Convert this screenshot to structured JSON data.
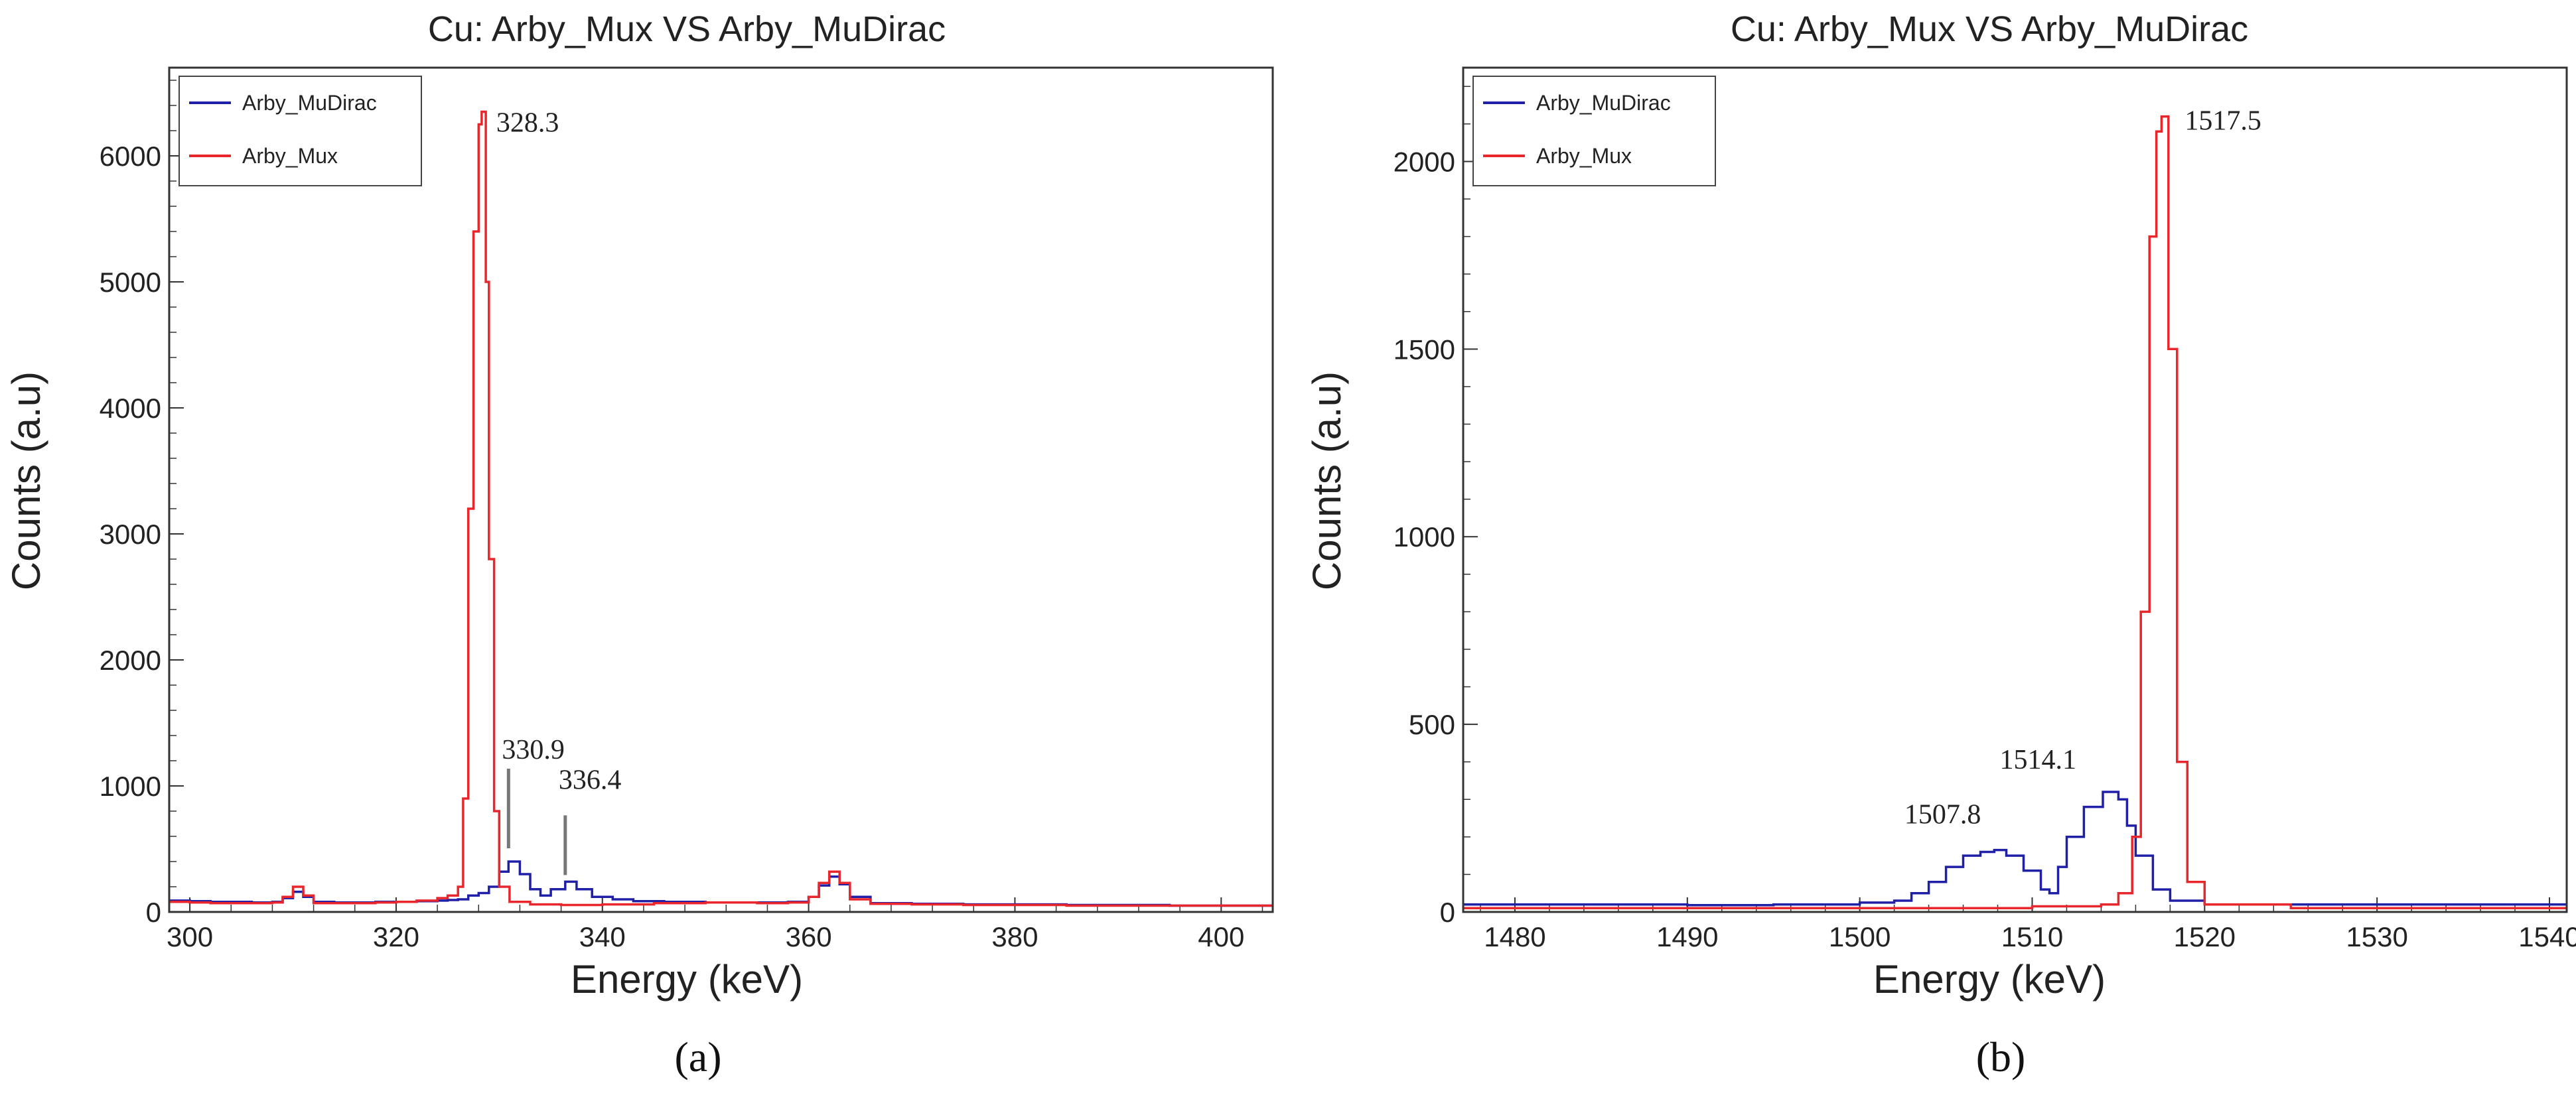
{
  "chart_data": [
    {
      "type": "line",
      "panel": "a",
      "caption": "(a)",
      "title": "Cu: Arby_Mux VS Arby_MuDirac",
      "xlabel": "Energy (keV)",
      "ylabel": "Counts (a.u)",
      "xlim": [
        298,
        405
      ],
      "ylim": [
        0,
        6700
      ],
      "xticks": [
        300,
        320,
        340,
        360,
        380,
        400
      ],
      "yticks": [
        0,
        1000,
        2000,
        3000,
        4000,
        5000,
        6000
      ],
      "legend": {
        "placement": "top-left",
        "entries": [
          "Arby_MuDirac",
          "Arby_Mux"
        ]
      },
      "series": [
        {
          "name": "Arby_MuDirac",
          "color": "#1f1fa8",
          "x": [
            298,
            300,
            302,
            304,
            306,
            308,
            309,
            310,
            311,
            312,
            314,
            316,
            318,
            320,
            322,
            324,
            325,
            326,
            327,
            328,
            329,
            330,
            330.9,
            332,
            333,
            334,
            335,
            336.4,
            337.5,
            339,
            341,
            343,
            346,
            350,
            354,
            358,
            360,
            361,
            362,
            363,
            364,
            366,
            370,
            375,
            380,
            385,
            390,
            395,
            400,
            405
          ],
          "y": [
            90,
            85,
            80,
            80,
            75,
            80,
            110,
            160,
            120,
            80,
            75,
            75,
            80,
            80,
            85,
            90,
            95,
            100,
            130,
            150,
            200,
            320,
            400,
            300,
            180,
            130,
            180,
            240,
            180,
            120,
            100,
            85,
            80,
            75,
            75,
            80,
            120,
            210,
            280,
            220,
            120,
            70,
            65,
            60,
            60,
            55,
            55,
            50,
            50,
            50
          ]
        },
        {
          "name": "Arby_Mux",
          "color": "#e8262b",
          "x": [
            298,
            300,
            302,
            304,
            306,
            308,
            309,
            310,
            311,
            312,
            314,
            316,
            318,
            320,
            322,
            324,
            325,
            326,
            326.5,
            327,
            327.5,
            328,
            328.3,
            328.7,
            329,
            329.5,
            330,
            331,
            333,
            336,
            340,
            345,
            350,
            355,
            358,
            360,
            361,
            362,
            363,
            364,
            366,
            370,
            375,
            380,
            385,
            390,
            395,
            400,
            405
          ],
          "y": [
            80,
            75,
            70,
            70,
            70,
            75,
            120,
            200,
            130,
            70,
            70,
            70,
            75,
            80,
            90,
            110,
            130,
            200,
            900,
            3200,
            5400,
            6250,
            6350,
            5000,
            2800,
            800,
            200,
            80,
            60,
            55,
            60,
            70,
            75,
            70,
            75,
            120,
            230,
            320,
            230,
            100,
            65,
            60,
            55,
            55,
            50,
            50,
            50,
            50,
            50
          ]
        }
      ],
      "annotations": [
        {
          "text": "328.3",
          "x": 328.3,
          "y": 6350
        },
        {
          "text": "330.9",
          "x": 330.9,
          "y": 400
        },
        {
          "text": "336.4",
          "x": 336.4,
          "y": 240
        }
      ]
    },
    {
      "type": "line",
      "panel": "b",
      "caption": "(b)",
      "title": "Cu: Arby_Mux VS Arby_MuDirac",
      "xlabel": "Energy (keV)",
      "ylabel": "Counts (a.u)",
      "xlim": [
        1477,
        1541
      ],
      "ylim": [
        0,
        2250
      ],
      "xticks": [
        1480,
        1490,
        1500,
        1510,
        1520,
        1530,
        1540
      ],
      "yticks": [
        0,
        500,
        1000,
        1500,
        2000
      ],
      "legend": {
        "placement": "top-left",
        "entries": [
          "Arby_MuDirac",
          "Arby_Mux"
        ]
      },
      "series": [
        {
          "name": "Arby_MuDirac",
          "color": "#1f1fa8",
          "x": [
            1477,
            1480,
            1485,
            1490,
            1495,
            1500,
            1502,
            1503,
            1504,
            1505,
            1506,
            1507,
            1507.8,
            1508.5,
            1509.5,
            1510.5,
            1511,
            1511.5,
            1512,
            1513,
            1514.1,
            1515,
            1515.5,
            1516,
            1517,
            1518,
            1520,
            1525,
            1530,
            1535,
            1541
          ],
          "y": [
            20,
            20,
            20,
            18,
            20,
            25,
            30,
            50,
            80,
            120,
            150,
            160,
            165,
            150,
            110,
            60,
            50,
            120,
            200,
            280,
            320,
            300,
            230,
            150,
            60,
            30,
            20,
            20,
            20,
            20,
            20
          ]
        },
        {
          "name": "Arby_Mux",
          "color": "#e8262b",
          "x": [
            1477,
            1480,
            1485,
            1490,
            1495,
            1500,
            1505,
            1510,
            1514,
            1515,
            1515.8,
            1516.3,
            1516.8,
            1517.2,
            1517.5,
            1517.9,
            1518.4,
            1519,
            1520,
            1525,
            1530,
            1535,
            1541
          ],
          "y": [
            10,
            10,
            10,
            10,
            10,
            10,
            10,
            15,
            20,
            50,
            200,
            800,
            1800,
            2080,
            2120,
            1500,
            400,
            80,
            20,
            10,
            10,
            10,
            10
          ]
        }
      ],
      "annotations": [
        {
          "text": "1517.5",
          "x": 1517.5,
          "y": 2120
        },
        {
          "text": "1514.1",
          "x": 1514.1,
          "y": 320
        },
        {
          "text": "1507.8",
          "x": 1507.8,
          "y": 165
        }
      ]
    }
  ]
}
